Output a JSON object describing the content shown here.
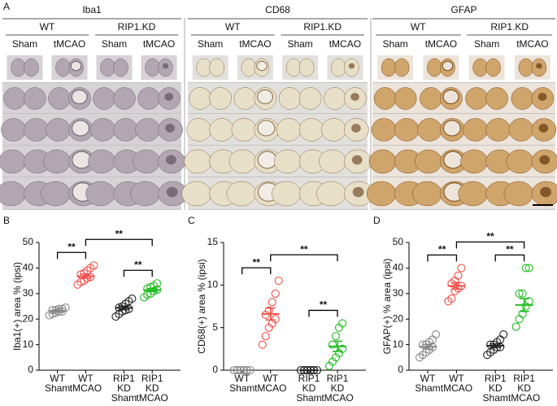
{
  "panel_a": {
    "label": "A",
    "stains": [
      "Iba1",
      "CD68",
      "GFAP"
    ],
    "genotypes": [
      "WT",
      "RIP1.KD"
    ],
    "conditions": [
      "Sham",
      "tMCAO"
    ]
  },
  "chart_data": [
    {
      "type": "scatter",
      "panel": "B",
      "ylabel": "Iba1(+) area % (ipsi)",
      "categories": [
        [
          "WT",
          "Sham"
        ],
        [
          "WT",
          "tMCAO"
        ],
        [
          "RIP1",
          "KD",
          "Sham"
        ],
        [
          "RIP1",
          "KD",
          "tMCAO"
        ]
      ],
      "series": [
        {
          "color": "#888888",
          "values": [
            21.5,
            22,
            22.5,
            23,
            23,
            23.5,
            23.5,
            24,
            24,
            24.5
          ],
          "mean": 23.2,
          "error": 0.3
        },
        {
          "color": "#f0504a",
          "values": [
            33.5,
            34.5,
            35,
            36,
            36.5,
            37.5,
            38,
            39,
            40,
            41
          ],
          "mean": 36.8,
          "error": 0.8
        },
        {
          "color": "#222222",
          "values": [
            21,
            22,
            23,
            23.5,
            24,
            24.5,
            25,
            26,
            27,
            28
          ],
          "mean": 24.4,
          "error": 0.7
        },
        {
          "color": "#22bb22",
          "values": [
            28.5,
            29.5,
            30,
            31,
            31.5,
            32,
            32.5,
            33,
            34
          ],
          "mean": 31.4,
          "error": 0.6
        }
      ],
      "ylim": [
        0,
        50
      ],
      "yticks": [
        0,
        10,
        20,
        30,
        40,
        50
      ],
      "brackets": [
        {
          "text": "**",
          "between": [
            0,
            1
          ]
        },
        {
          "text": "**",
          "between": [
            2,
            3
          ]
        },
        {
          "text": "**",
          "between": [
            1,
            3
          ]
        }
      ]
    },
    {
      "type": "scatter",
      "panel": "C",
      "ylabel": "CD68(+) area %  (ipsi)",
      "categories": [
        [
          "WT",
          "Sham"
        ],
        [
          "WT",
          "tMCAO"
        ],
        [
          "RIP1",
          "KD",
          "Sham"
        ],
        [
          "RIP1",
          "KD",
          "tMCAO"
        ]
      ],
      "series": [
        {
          "color": "#888888",
          "values": [
            0,
            0,
            0,
            0,
            0,
            0,
            0,
            0,
            0,
            0
          ],
          "mean": 0,
          "error": 0
        },
        {
          "color": "#f0504a",
          "values": [
            3,
            4,
            5,
            5.5,
            6,
            6.5,
            7,
            8,
            9,
            10.5
          ],
          "mean": 6.6,
          "error": 0.7
        },
        {
          "color": "#222222",
          "values": [
            0,
            0,
            0,
            0,
            0,
            0,
            0,
            0,
            0,
            0
          ],
          "mean": 0,
          "error": 0
        },
        {
          "color": "#22bb22",
          "values": [
            0.5,
            1,
            1.5,
            2,
            2.5,
            3,
            4,
            5,
            5.5
          ],
          "mean": 2.8,
          "error": 0.6
        }
      ],
      "ylim": [
        0,
        15
      ],
      "yticks": [
        0,
        5,
        10,
        15
      ],
      "brackets": [
        {
          "text": "**",
          "between": [
            0,
            1
          ]
        },
        {
          "text": "**",
          "between": [
            2,
            3
          ]
        },
        {
          "text": "**",
          "between": [
            1,
            3
          ]
        }
      ]
    },
    {
      "type": "scatter",
      "panel": "D",
      "ylabel": "GFAP(+) % area (ipsi)",
      "categories": [
        [
          "WT",
          "Sham"
        ],
        [
          "WT",
          "tMCAO"
        ],
        [
          "RIP1",
          "KD",
          "Sham"
        ],
        [
          "RIP1",
          "KD",
          "tMCAO"
        ]
      ],
      "series": [
        {
          "color": "#888888",
          "values": [
            5,
            6,
            7,
            8,
            9,
            10,
            10,
            11,
            12,
            14
          ],
          "mean": 9.2,
          "error": 0.9
        },
        {
          "color": "#f0504a",
          "values": [
            27,
            28,
            31,
            32,
            33,
            34,
            35,
            37,
            40
          ],
          "mean": 33,
          "error": 1.3
        },
        {
          "color": "#222222",
          "values": [
            6,
            7,
            8,
            9,
            9,
            10,
            10,
            11,
            12,
            14
          ],
          "mean": 9.6,
          "error": 0.7
        },
        {
          "color": "#22bb22",
          "values": [
            17,
            20,
            22,
            25,
            27,
            30,
            30,
            40,
            40
          ],
          "mean": 25.5,
          "error": 2.5
        }
      ],
      "ylim": [
        0,
        50
      ],
      "yticks": [
        0,
        10,
        20,
        30,
        40,
        50
      ],
      "brackets": [
        {
          "text": "**",
          "between": [
            0,
            1
          ]
        },
        {
          "text": "**",
          "between": [
            2,
            3
          ]
        },
        {
          "text": "**",
          "between": [
            1,
            3
          ]
        }
      ]
    }
  ]
}
